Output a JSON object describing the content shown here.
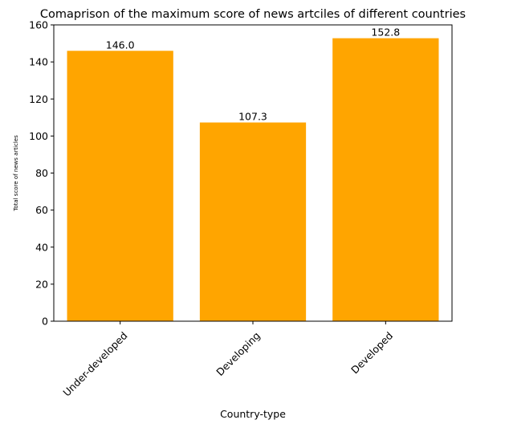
{
  "chart_data": {
    "type": "bar",
    "title": "Comaprison of the maximum score of news artciles of different countries",
    "xlabel": "Country-type",
    "ylabel": "Total score of news articles",
    "categories": [
      "Under-developed",
      "Developing",
      "Developed"
    ],
    "values": [
      146.0,
      107.3,
      152.8
    ],
    "value_labels": [
      "146.0",
      "107.3",
      "152.8"
    ],
    "ylim": [
      0,
      160
    ],
    "yticks": [
      0,
      20,
      40,
      60,
      80,
      100,
      120,
      140,
      160
    ],
    "ytick_labels": [
      "0",
      "20",
      "40",
      "60",
      "80",
      "100",
      "120",
      "140",
      "160"
    ],
    "bar_color": "#ffa500",
    "grid": false,
    "legend": "none",
    "xtick_rotation": "45"
  }
}
